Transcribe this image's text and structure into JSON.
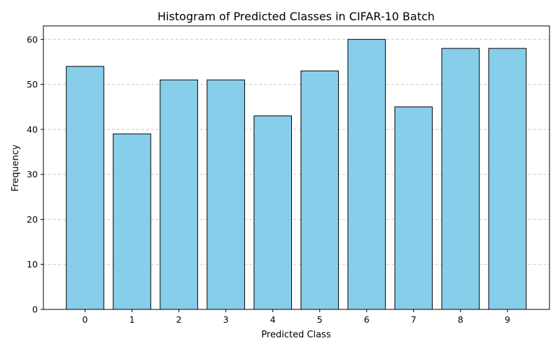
{
  "chart_data": {
    "type": "bar",
    "title": "Histogram of Predicted Classes in CIFAR-10 Batch",
    "xlabel": "Predicted Class",
    "ylabel": "Frequency",
    "categories": [
      "0",
      "1",
      "2",
      "3",
      "4",
      "5",
      "6",
      "7",
      "8",
      "9"
    ],
    "values": [
      54,
      39,
      51,
      51,
      43,
      53,
      60,
      45,
      58,
      58
    ],
    "ylim": [
      0,
      63
    ],
    "yticks": [
      0,
      10,
      20,
      30,
      40,
      50,
      60
    ],
    "grid": "y-dashed",
    "bar_color": "#87CEEB",
    "bar_edge_color": "#000000",
    "grid_color": "#c8c8c8"
  }
}
